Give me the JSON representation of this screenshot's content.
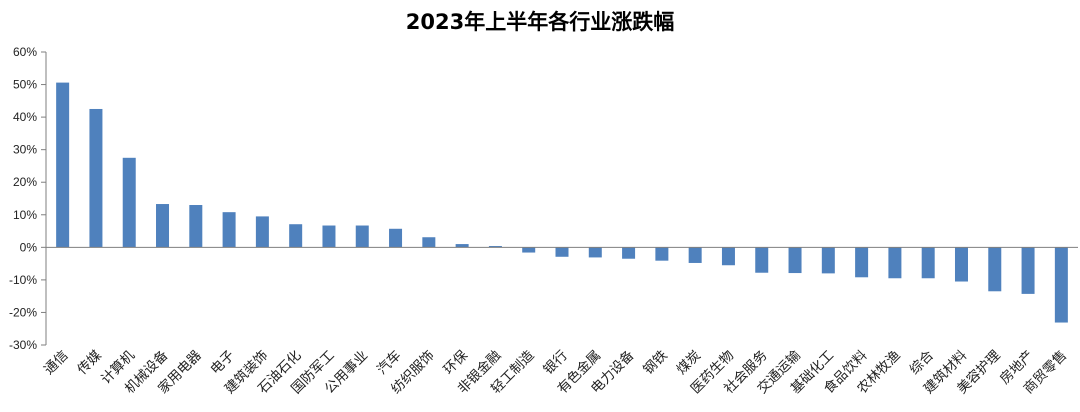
{
  "chart_data": {
    "type": "bar",
    "title": "2023年上半年各行业涨跌幅",
    "xlabel": "",
    "ylabel": "",
    "ylim": [
      -30,
      60
    ],
    "yticks": [
      60,
      50,
      40,
      30,
      20,
      10,
      0,
      -10,
      -20,
      -30
    ],
    "ytick_labels": [
      "60%",
      "50%",
      "40%",
      "30%",
      "20%",
      "10%",
      "0%",
      "-10%",
      "-20%",
      "-30%"
    ],
    "grid": false,
    "legend": "none",
    "bar_color": "#4f81bd",
    "categories": [
      "通信",
      "传媒",
      "计算机",
      "机械设备",
      "家用电器",
      "电子",
      "建筑装饰",
      "石油石化",
      "国防军工",
      "公用事业",
      "汽车",
      "纺织服饰",
      "环保",
      "非银金融",
      "轻工制造",
      "银行",
      "有色金属",
      "电力设备",
      "钢铁",
      "煤炭",
      "医药生物",
      "社会服务",
      "交通运输",
      "基础化工",
      "食品饮料",
      "农林牧渔",
      "综合",
      "建筑材料",
      "美容护理",
      "房地产",
      "商贸零售"
    ],
    "values": [
      50.6,
      42.5,
      27.5,
      13.3,
      13.0,
      10.8,
      9.5,
      7.1,
      6.7,
      6.7,
      5.7,
      3.1,
      1.0,
      0.4,
      -1.6,
      -2.9,
      -3.1,
      -3.5,
      -4.1,
      -4.8,
      -5.5,
      -7.8,
      -7.9,
      -8.0,
      -9.2,
      -9.5,
      -9.5,
      -10.5,
      -13.5,
      -14.3,
      -23.1
    ]
  }
}
